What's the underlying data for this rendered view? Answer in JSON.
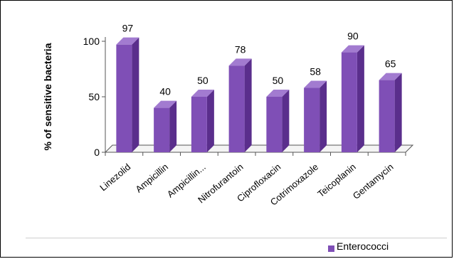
{
  "chart_data": {
    "type": "bar",
    "title": "",
    "xlabel": "",
    "ylabel": "% of sensitive bacteria",
    "ylim": [
      0,
      100
    ],
    "yticks": [
      0,
      50,
      100
    ],
    "categories": [
      "Linezolid",
      "Ampicillin",
      "Ampicillin...",
      "Nitrofurantoin",
      "Ciprofloxacin",
      "Cotrimoxazole",
      "Teicoplanin",
      "Gentamycin"
    ],
    "series": [
      {
        "name": "Enterococci",
        "values": [
          97,
          40,
          50,
          78,
          50,
          58,
          90,
          65
        ]
      }
    ],
    "data_labels": [
      "97",
      "40",
      "50",
      "78",
      "50",
      "58",
      "90",
      "65"
    ],
    "bar_style": "3d",
    "grid": false,
    "legend": "bottom-right",
    "colors": {
      "bar_front": "#7F4FB6",
      "bar_side": "#5A2E8C",
      "bar_top": "#A27BD0",
      "axis": "#555555"
    }
  }
}
